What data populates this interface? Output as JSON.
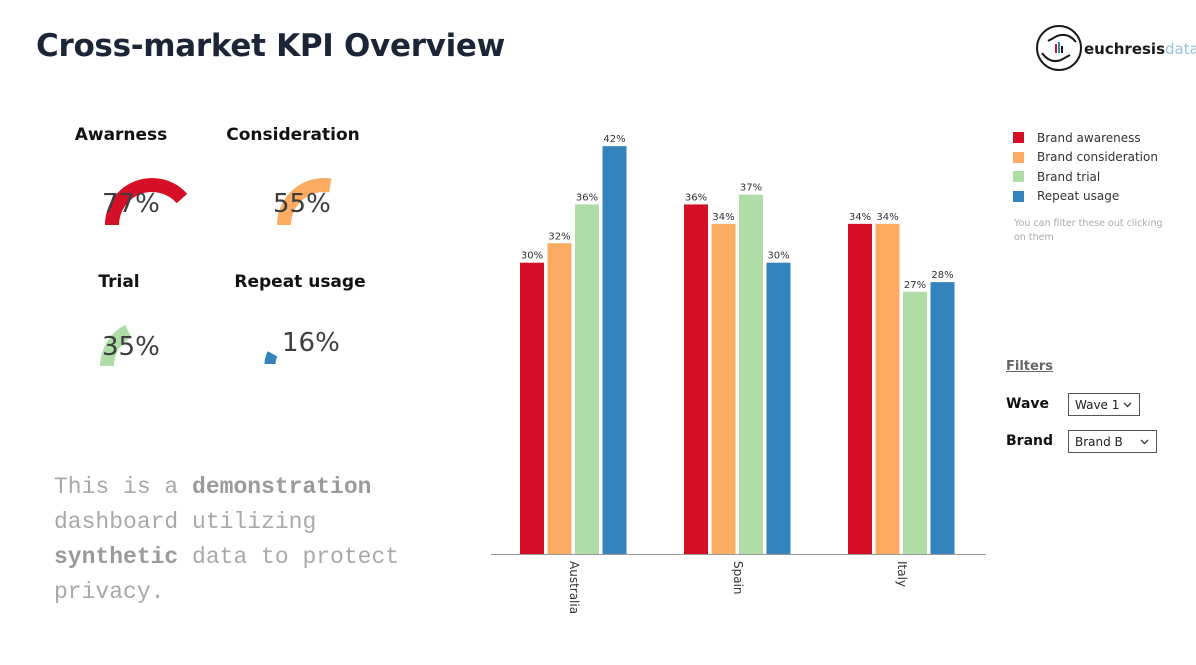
{
  "header": {
    "title": "Cross-market KPI Overview"
  },
  "logo": {
    "main": "euchresis",
    "sub": "data"
  },
  "kpis": [
    {
      "label": "Awarness",
      "value": "77%",
      "fraction": 0.77,
      "color": "#d50f25"
    },
    {
      "label": "Consideration",
      "value": "55%",
      "fraction": 0.55,
      "color": "#fcab63"
    },
    {
      "label": "Trial",
      "value": "35%",
      "fraction": 0.35,
      "color": "#aedea5"
    },
    {
      "label": "Repeat usage",
      "value": "16%",
      "fraction": 0.16,
      "color": "#3383bc"
    }
  ],
  "demo": {
    "t1": "This is a ",
    "b1": "demonstration",
    "t2": " dashboard utilizing ",
    "b2": "synthetic",
    "t3": " data to protect privacy."
  },
  "chart_data": {
    "type": "bar",
    "categories": [
      "Australia",
      "Spain",
      "Italy"
    ],
    "series": [
      {
        "name": "Brand awareness",
        "color": "#d50f25",
        "values": [
          30,
          36,
          34
        ]
      },
      {
        "name": "Brand consideration",
        "color": "#fcab63",
        "values": [
          32,
          34,
          34
        ]
      },
      {
        "name": "Brand trial",
        "color": "#aedea5",
        "values": [
          36,
          37,
          27
        ]
      },
      {
        "name": "Repeat usage",
        "color": "#3383bc",
        "values": [
          42,
          30,
          28
        ]
      }
    ],
    "value_suffix": "%",
    "ylim": [
      0,
      45
    ],
    "grid": false,
    "legend_position": "right"
  },
  "legend": {
    "note": "You can filter these out clicking on them"
  },
  "filters": {
    "title": "Filters",
    "wave": {
      "label": "Wave",
      "value": "Wave 1"
    },
    "brand": {
      "label": "Brand",
      "value": "Brand B"
    }
  }
}
